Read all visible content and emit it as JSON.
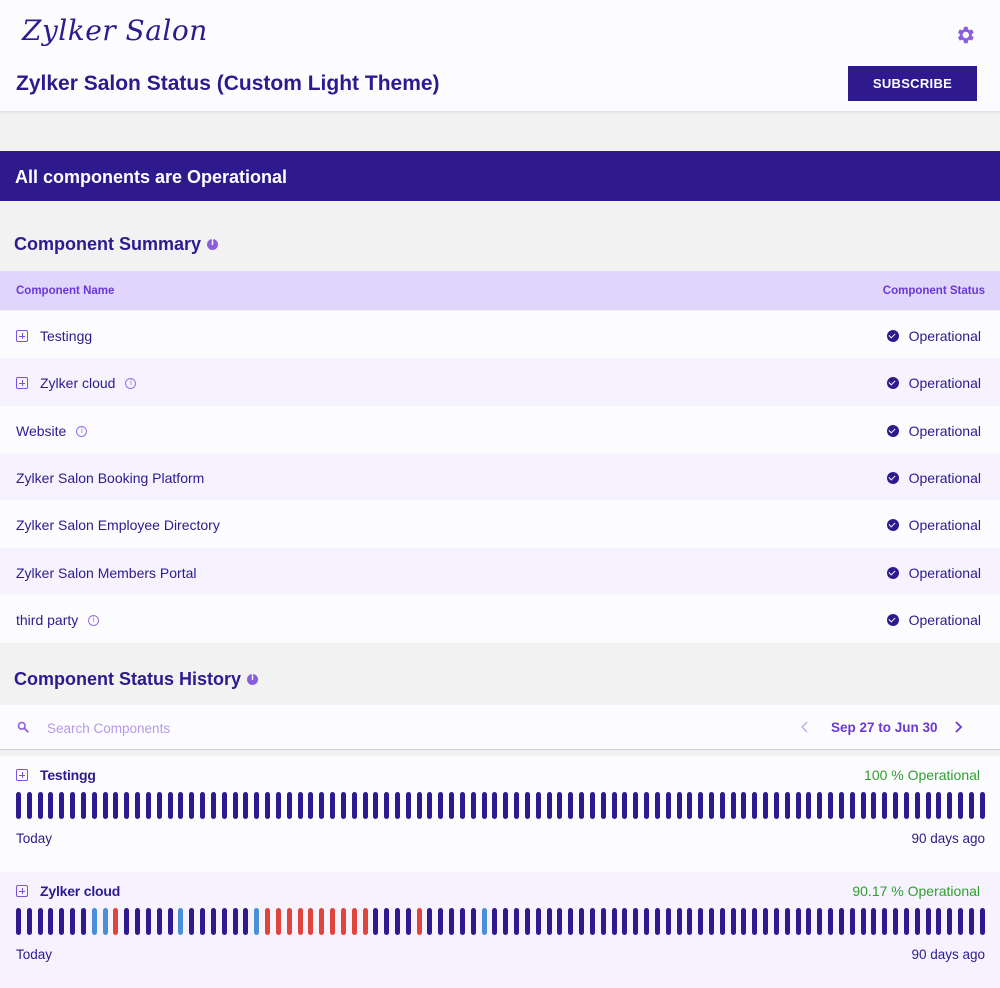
{
  "header": {
    "logo_text": "Zylker Salon",
    "title": "Zylker Salon Status (Custom Light Theme)",
    "subscribe_label": "SUBSCRIBE"
  },
  "banner": {
    "text": "All components are Operational"
  },
  "summary": {
    "title": "Component Summary",
    "col_name": "Component Name",
    "col_status": "Component Status",
    "rows": [
      {
        "name": "Testingg",
        "status": "Operational",
        "expandable": true,
        "info": false
      },
      {
        "name": "Zylker cloud",
        "status": "Operational",
        "expandable": true,
        "info": true
      },
      {
        "name": "Website",
        "status": "Operational",
        "expandable": false,
        "info": true
      },
      {
        "name": "Zylker Salon Booking Platform",
        "status": "Operational",
        "expandable": false,
        "info": false
      },
      {
        "name": "Zylker Salon Employee Directory",
        "status": "Operational",
        "expandable": false,
        "info": false
      },
      {
        "name": "Zylker Salon Members Portal",
        "status": "Operational",
        "expandable": false,
        "info": false
      },
      {
        "name": "third party",
        "status": "Operational",
        "expandable": false,
        "info": true
      }
    ]
  },
  "history": {
    "title": "Component Status History",
    "search_placeholder": "Search Components",
    "date_range": "Sep 27 to Jun 30",
    "today_label": "Today",
    "ago_label": "90 days ago",
    "colors": {
      "operational": "#2e1a8e",
      "degraded": "#4a90d9",
      "outage": "#e0443a"
    },
    "components": [
      {
        "name": "Testingg",
        "pct": "100 % Operational",
        "days": "oooooooooooooooooooooooooooooooooooooooooooooooooooooooooooooooooooooooooooooooooooooooooo"
      },
      {
        "name": "Zylker cloud",
        "pct": "90.17 % Operational",
        "days": "oooooooddrooooodoooooodrrrrrrrrrroooorooooodoooooooooooooooooooooooooooooooooooooooooooooo"
      }
    ]
  }
}
